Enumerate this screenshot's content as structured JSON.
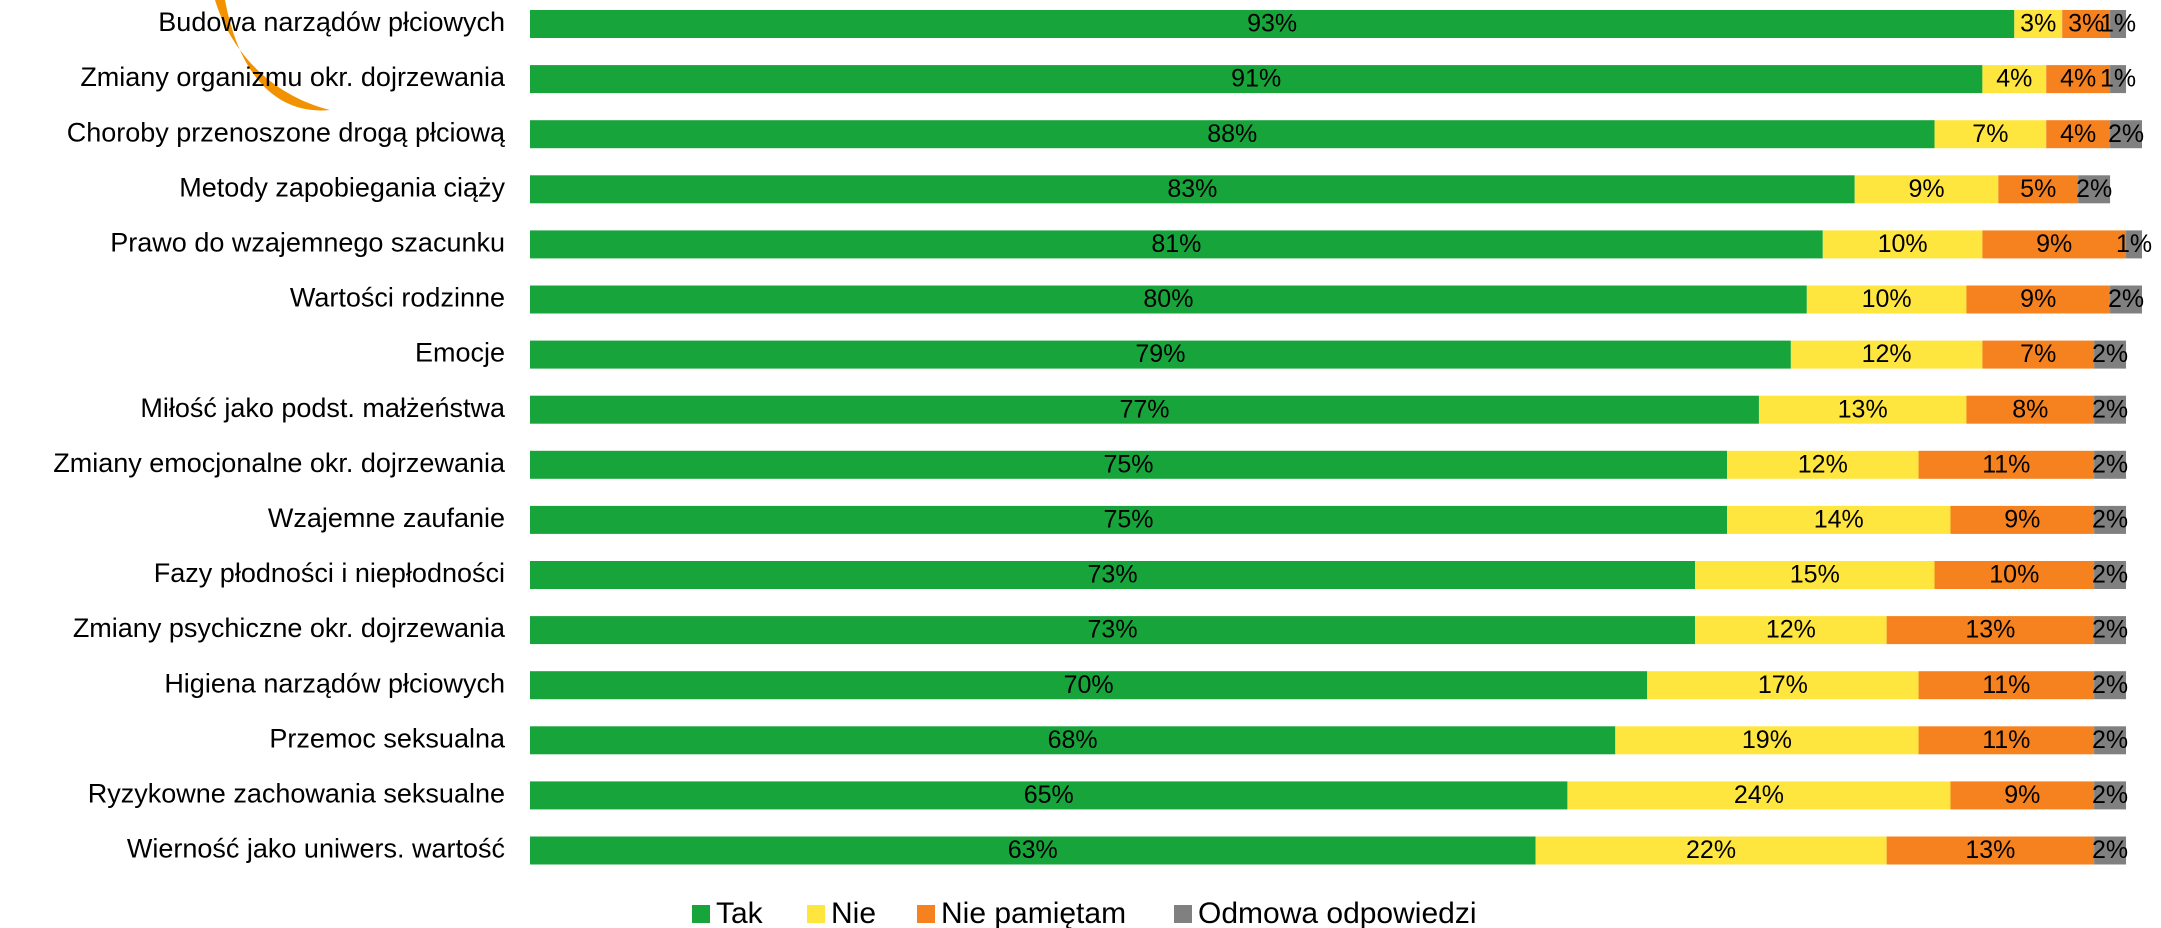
{
  "chart_data": {
    "type": "stacked-bar-horizontal",
    "categories": [
      "Budowa narządów płciowych",
      "Zmiany organizmu okr. dojrzewania",
      "Choroby przenoszone drogą płciową",
      "Metody zapobiegania ciąży",
      "Prawo do wzajemnego szacunku",
      "Wartości rodzinne",
      "Emocje",
      "Miłość jako podst. małżeństwa",
      "Zmiany emocjonalne okr. dojrzewania",
      "Wzajemne zaufanie",
      "Fazy płodności i niepłodności",
      "Zmiany psychiczne okr. dojrzewania",
      "Higiena narządów płciowych",
      "Przemoc seksualna",
      "Ryzykowne zachowania seksualne",
      "Wierność jako uniwers. wartość"
    ],
    "series": [
      {
        "name": "Tak",
        "color": "#17a43b",
        "values": [
          93,
          91,
          88,
          83,
          81,
          80,
          79,
          77,
          75,
          75,
          73,
          73,
          70,
          68,
          65,
          63
        ],
        "value_labels": [
          "93%",
          "91%",
          "88%",
          "83%",
          "81%",
          "80%",
          "79%",
          "77%",
          "75%",
          "75%",
          "73%",
          "73%",
          "70%",
          "68%",
          "65%",
          "63%"
        ]
      },
      {
        "name": "Nie",
        "color": "#ffe63f",
        "values": [
          3,
          4,
          7,
          9,
          10,
          10,
          12,
          13,
          12,
          14,
          15,
          12,
          17,
          19,
          24,
          22
        ],
        "value_labels": [
          "3%",
          "4%",
          "7%",
          "9%",
          "10%",
          "10%",
          "12%",
          "13%",
          "12%",
          "14%",
          "15%",
          "12%",
          "17%",
          "19%",
          "24%",
          "22%"
        ]
      },
      {
        "name": "Nie pamiętam",
        "color": "#f5821f",
        "values": [
          3,
          4,
          4,
          5,
          9,
          9,
          7,
          8,
          11,
          9,
          10,
          13,
          11,
          11,
          9,
          13
        ],
        "value_labels": [
          "3%",
          "4%",
          "4%",
          "5%",
          "9%",
          "9%",
          "7%",
          "8%",
          "11%",
          "9%",
          "10%",
          "13%",
          "11%",
          "11%",
          "9%",
          "13%"
        ]
      },
      {
        "name": "Odmowa odpowiedzi",
        "color": "#808080",
        "values": [
          1,
          1,
          2,
          2,
          1,
          2,
          2,
          2,
          2,
          2,
          2,
          2,
          2,
          2,
          2,
          2
        ],
        "value_labels": [
          "1%",
          "1%",
          "2%",
          "2%",
          "1%",
          "2%",
          "2%",
          "2%",
          "2%",
          "2%",
          "2%",
          "2%",
          "2%",
          "2%",
          "2%",
          "2%"
        ]
      }
    ]
  }
}
